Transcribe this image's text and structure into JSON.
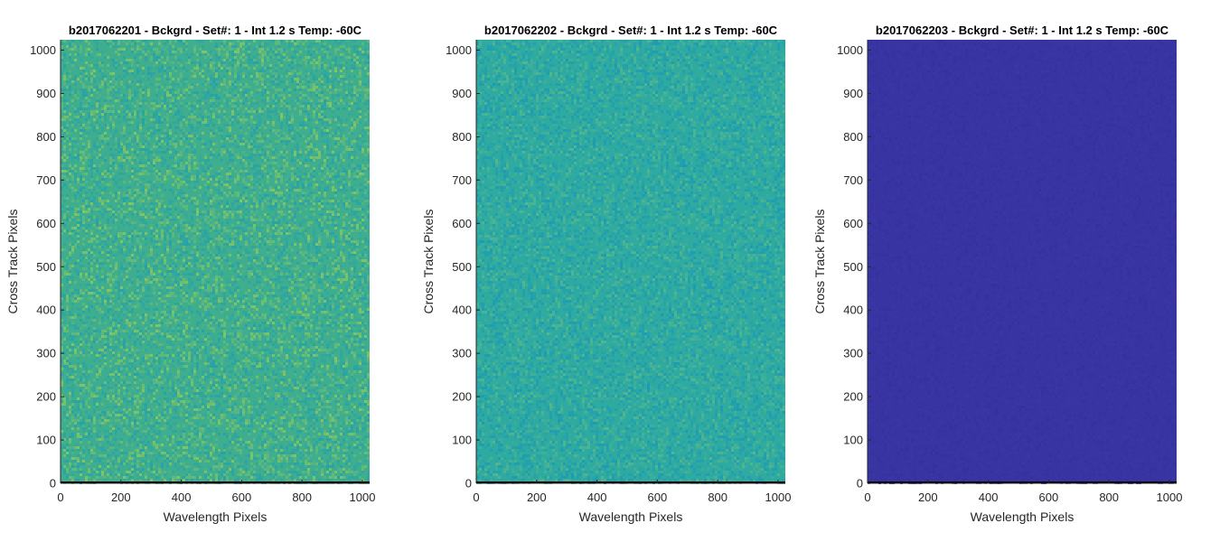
{
  "chart_data": [
    {
      "type": "heatmap",
      "title": "b2017062201 - Bckgrd - Set#: 1 - Int 1.2 s Temp: -60C",
      "xlabel": "Wavelength Pixels",
      "ylabel": "Cross Track Pixels",
      "xlim": [
        0,
        1024
      ],
      "ylim": [
        0,
        1024
      ],
      "xticks": [
        0,
        200,
        400,
        600,
        800,
        1000
      ],
      "yticks": [
        0,
        100,
        200,
        300,
        400,
        500,
        600,
        700,
        800,
        900,
        1000
      ],
      "colormap": "parula",
      "base_color": "#3fae8f",
      "noise_colors": [
        "#8fc95a",
        "#2ba3a8",
        "#65bb77",
        "#21a0ad"
      ],
      "bottom_row_color": "#000000",
      "grid": false
    },
    {
      "type": "heatmap",
      "title": "b2017062202 - Bckgrd - Set#: 1 - Int 1.2 s Temp: -60C",
      "xlabel": "Wavelength Pixels",
      "ylabel": "Cross Track Pixels",
      "xlim": [
        0,
        1024
      ],
      "ylim": [
        0,
        1024
      ],
      "xticks": [
        0,
        200,
        400,
        600,
        800,
        1000
      ],
      "yticks": [
        0,
        100,
        200,
        300,
        400,
        500,
        600,
        700,
        800,
        900,
        1000
      ],
      "colormap": "parula",
      "base_color": "#2eaaa0",
      "noise_colors": [
        "#58b98a",
        "#1f9db2",
        "#44b295",
        "#1a98b8"
      ],
      "bottom_row_color": "#000000",
      "grid": false
    },
    {
      "type": "heatmap",
      "title": "b2017062203 - Bckgrd - Set#: 1 - Int 1.2 s Temp: -60C",
      "xlabel": "Wavelength Pixels",
      "ylabel": "Cross Track Pixels",
      "xlim": [
        0,
        1024
      ],
      "ylim": [
        0,
        1024
      ],
      "xticks": [
        0,
        200,
        400,
        600,
        800,
        1000
      ],
      "yticks": [
        0,
        100,
        200,
        300,
        400,
        500,
        600,
        700,
        800,
        900,
        1000
      ],
      "colormap": "parula",
      "base_color": "#3834a1",
      "noise_colors": [
        "#3a37a6",
        "#3531a0",
        "#3b36a3"
      ],
      "bottom_row_color": "#000000",
      "grid": false
    }
  ]
}
